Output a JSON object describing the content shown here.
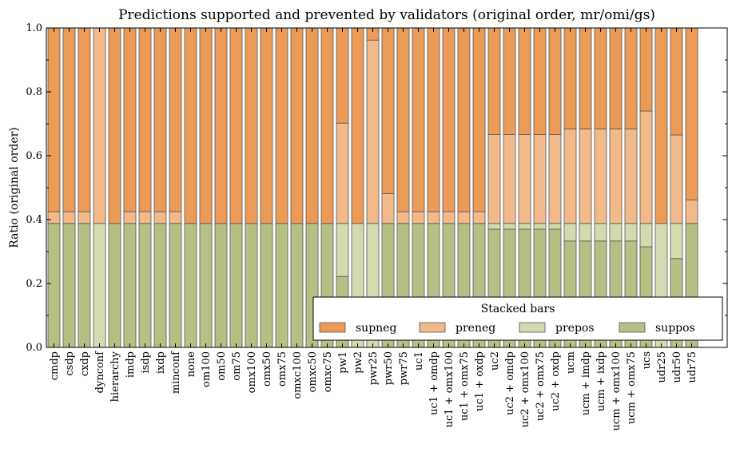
{
  "chart_data": {
    "type": "bar",
    "stacked": true,
    "title": "Predictions supported and prevented by validators (original order, mr/omi/gs)",
    "xlabel": "",
    "ylabel": "Ratio (original order)",
    "ylim": [
      0,
      1.0
    ],
    "yticks": [
      "0.0",
      "0.2",
      "0.4",
      "0.6",
      "0.8",
      "1.0"
    ],
    "legend": {
      "title": "Stacked bars",
      "position": "lower-right",
      "ncol": 4
    },
    "categories": [
      "cmdp",
      "csdp",
      "cxdp",
      "dynconf",
      "hierarchy",
      "imdp",
      "isdp",
      "ixdp",
      "minconf",
      "none",
      "om100",
      "om50",
      "om75",
      "omx100",
      "omx50",
      "omx75",
      "omxc100",
      "omxc50",
      "omxc75",
      "pw1",
      "pw2",
      "pwr25",
      "pwr50",
      "pwr75",
      "uc1",
      "uc1 + omdp",
      "uc1 + omx100",
      "uc1 + omx75",
      "uc1 + oxdp",
      "uc2",
      "uc2 + omdp",
      "uc2 + omx100",
      "uc2 + omx75",
      "uc2 + oxdp",
      "ucm",
      "ucm + imdp",
      "ucm + ixdp",
      "ucm + omx100",
      "ucm + omx75",
      "ucs",
      "udr25",
      "udr50",
      "udr75"
    ],
    "series": [
      {
        "name": "suppos",
        "color": "#b5c184",
        "values": [
          0.388,
          0.388,
          0.388,
          0,
          0.388,
          0.388,
          0.388,
          0.388,
          0.388,
          0.388,
          0.388,
          0.388,
          0.388,
          0.388,
          0.388,
          0.388,
          0.388,
          0.388,
          0.388,
          0.222,
          0,
          0,
          0.388,
          0.388,
          0.388,
          0.388,
          0.388,
          0.388,
          0.388,
          0.37,
          0.37,
          0.37,
          0.37,
          0.37,
          0.333,
          0.333,
          0.333,
          0.333,
          0.333,
          0.315,
          0,
          0.278,
          0.388
        ]
      },
      {
        "name": "prepos",
        "color": "#d2dab0",
        "values": [
          0,
          0,
          0,
          0.388,
          0,
          0,
          0,
          0,
          0,
          0,
          0,
          0,
          0,
          0,
          0,
          0,
          0,
          0,
          0,
          0.166,
          0.388,
          0.388,
          0,
          0,
          0,
          0,
          0,
          0,
          0,
          0.018,
          0.018,
          0.018,
          0.018,
          0.018,
          0.055,
          0.055,
          0.055,
          0.055,
          0.055,
          0.073,
          0.388,
          0.11,
          0
        ]
      },
      {
        "name": "preneg",
        "color": "#f2b98a",
        "values": [
          0.037,
          0.037,
          0.037,
          0.612,
          0,
          0.037,
          0.037,
          0.037,
          0.037,
          0,
          0,
          0,
          0,
          0,
          0,
          0,
          0,
          0,
          0,
          0.314,
          0,
          0.574,
          0.093,
          0.037,
          0.037,
          0.037,
          0.037,
          0.037,
          0.037,
          0.278,
          0.278,
          0.278,
          0.278,
          0.278,
          0.296,
          0.296,
          0.296,
          0.296,
          0.296,
          0.352,
          0,
          0.277,
          0.074
        ]
      },
      {
        "name": "supneg",
        "color": "#ec9b57",
        "values": [
          0.575,
          0.575,
          0.575,
          0,
          0.612,
          0.575,
          0.575,
          0.575,
          0.575,
          0.612,
          0.612,
          0.612,
          0.612,
          0.612,
          0.612,
          0.612,
          0.612,
          0.612,
          0.612,
          0.298,
          0.612,
          0.038,
          0.519,
          0.575,
          0.575,
          0.575,
          0.575,
          0.575,
          0.575,
          0.334,
          0.334,
          0.334,
          0.334,
          0.334,
          0.316,
          0.316,
          0.316,
          0.316,
          0.316,
          0.26,
          0.612,
          0.335,
          0.538
        ]
      }
    ]
  }
}
